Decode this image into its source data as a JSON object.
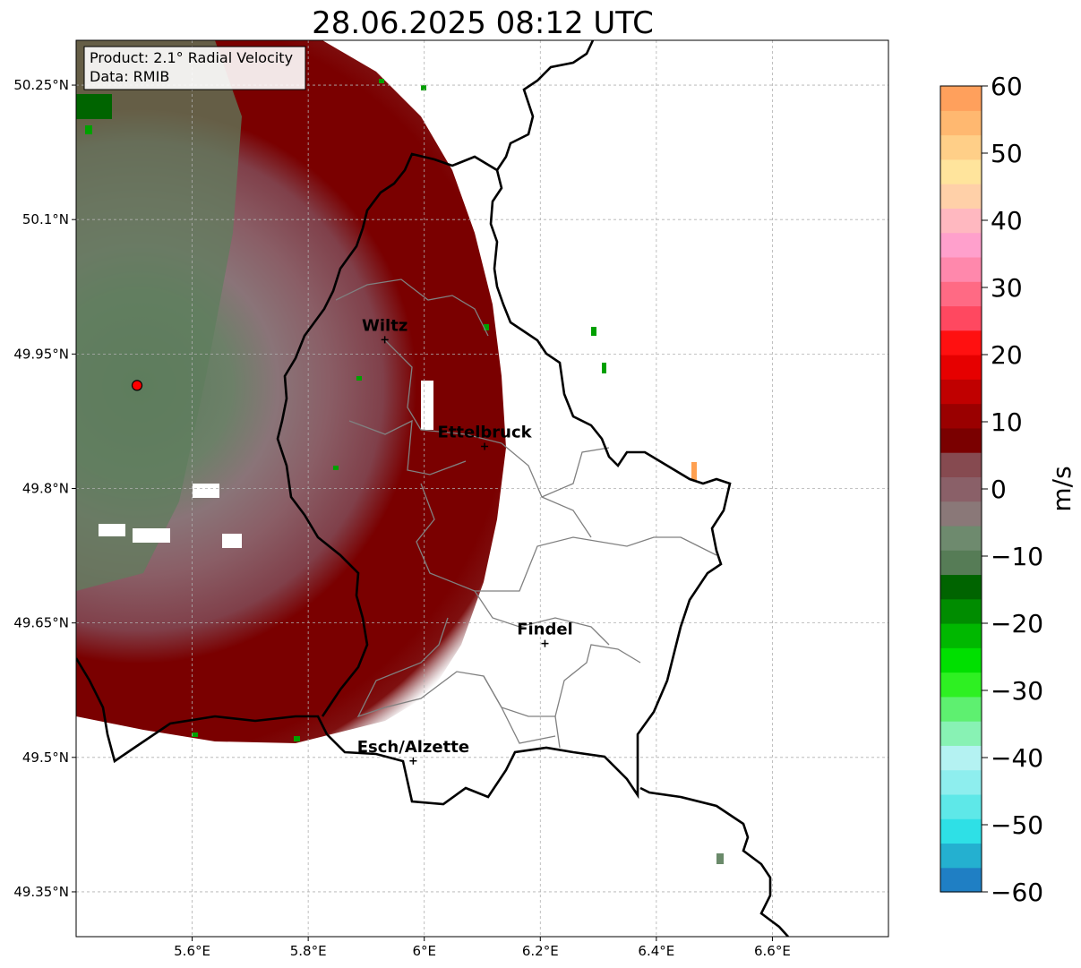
{
  "title": "28.06.2025 08:12 UTC",
  "info_box": {
    "line1": "Product: 2.1° Radial Velocity",
    "line2": "Data: RMIB"
  },
  "map": {
    "lon_range": [
      5.4,
      6.8
    ],
    "lat_range": [
      49.3,
      50.3
    ],
    "lon_ticks": [
      "5.6°E",
      "5.8°E",
      "6°E",
      "6.2°E",
      "6.4°E",
      "6.6°E"
    ],
    "lat_ticks": [
      "50.25°N",
      "50.1°N",
      "49.95°N",
      "49.8°N",
      "49.65°N",
      "49.5°N",
      "49.35°N"
    ],
    "grid": true,
    "radar_site": {
      "lon": 5.505,
      "lat": 49.915,
      "marker_color": "#ff0000"
    },
    "cities": [
      {
        "name": "Wiltz",
        "lon": 5.932,
        "lat": 49.966
      },
      {
        "name": "Ettelbruck",
        "lon": 6.104,
        "lat": 49.847
      },
      {
        "name": "Findel",
        "lon": 6.208,
        "lat": 49.627
      },
      {
        "name": "Esch/Alzette",
        "lon": 5.981,
        "lat": 49.496
      }
    ]
  },
  "colorbar": {
    "label": "m/s",
    "min": -60,
    "max": 60,
    "ticks": [
      "60",
      "50",
      "40",
      "30",
      "20",
      "10",
      "0",
      "−10",
      "−20",
      "−30",
      "−40",
      "−50",
      "−60"
    ],
    "colors": [
      "#1f7fc4",
      "#24b0d0",
      "#2ee0e6",
      "#5ee8e8",
      "#8eeeee",
      "#b4f2f2",
      "#88f2b4",
      "#5ef070",
      "#2ef022",
      "#00e000",
      "#00b800",
      "#008c00",
      "#006400",
      "#567c56",
      "#6e8a6e",
      "#8a7878",
      "#8a6068",
      "#864a50",
      "#7a0000",
      "#9a0000",
      "#c00000",
      "#e60000",
      "#ff1010",
      "#ff4860",
      "#ff6a84",
      "#ff88ac",
      "#ffa0cc",
      "#ffb8c0",
      "#ffd0a8",
      "#ffe49c",
      "#ffcf88",
      "#ffb870",
      "#ffa05c"
    ]
  }
}
